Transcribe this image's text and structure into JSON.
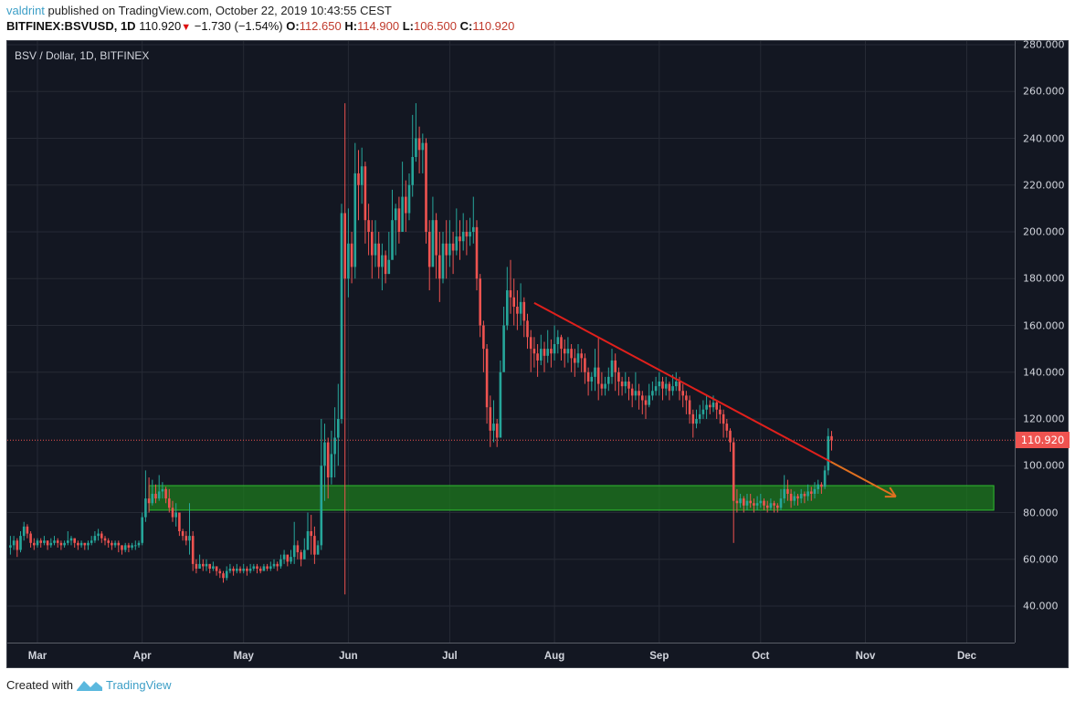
{
  "header": {
    "user": "valdrint",
    "published": "published on TradingView.com, October 22, 2019 10:43:55 CEST",
    "symbol": "BITFINEX:BSVUSD, 1D",
    "last": "110.920",
    "change": "−1.730 (−1.54%)",
    "o_label": "O:",
    "o": "112.650",
    "h_label": "H:",
    "h": "114.900",
    "l_label": "L:",
    "l": "106.500",
    "c_label": "C:",
    "c": "110.920",
    "down_icon": "triangle-down-icon"
  },
  "footer": {
    "created": "Created with",
    "brand": "TradingView",
    "logo_icon": "tradingview-logo-icon"
  },
  "chart_data": {
    "type": "candlestick",
    "title": "BSV / Dollar, 1D, BITFINEX",
    "start_date": "2019-02-21",
    "interval": "1D",
    "candle_format": "[close, high, low]; open = previous close",
    "first_open": 65,
    "colors": {
      "up": "#26a69a",
      "down": "#ef5350",
      "background": "#131722",
      "grid": "#262a35",
      "zone": "#1e7a1e",
      "trend": "#e0201c",
      "arrow": "#e07020"
    },
    "ylim": [
      25,
      285
    ],
    "yticks": [
      40,
      60,
      80,
      100,
      120,
      140,
      160,
      180,
      200,
      220,
      240,
      260,
      280
    ],
    "ytick_labels": [
      "40.000",
      "60.000",
      "80.000",
      "100.000",
      "120.000",
      "140.000",
      "160.000",
      "180.000",
      "200.000",
      "220.000",
      "240.000",
      "260.000",
      "280.000"
    ],
    "xticks": [
      {
        "label": "Mar",
        "day": 8
      },
      {
        "label": "Apr",
        "day": 39
      },
      {
        "label": "May",
        "day": 69
      },
      {
        "label": "Jun",
        "day": 100
      },
      {
        "label": "Jul",
        "day": 130
      },
      {
        "label": "Aug",
        "day": 161
      },
      {
        "label": "Sep",
        "day": 192
      },
      {
        "label": "Oct",
        "day": 222
      },
      {
        "label": "Nov",
        "day": 253
      },
      {
        "label": "Dec",
        "day": 283
      }
    ],
    "last_price": 110.92,
    "last_price_label": "110.920",
    "annotations": {
      "support_zone": {
        "from_day": 41,
        "to_day": 291,
        "low": 81,
        "high": 91.5
      },
      "trendline": {
        "from_day": 155,
        "from_price": 169.6,
        "to_day": 262,
        "to_price": 86.8
      }
    },
    "candles": [
      [
        66,
        70,
        62
      ],
      [
        68,
        70,
        64
      ],
      [
        64,
        69,
        61
      ],
      [
        70,
        72,
        63
      ],
      [
        74,
        76,
        68
      ],
      [
        71,
        75,
        69
      ],
      [
        67,
        72,
        65
      ],
      [
        66,
        69,
        64
      ],
      [
        68,
        69,
        65
      ],
      [
        67,
        69,
        65
      ],
      [
        68,
        70,
        66
      ],
      [
        66,
        68,
        64
      ],
      [
        67,
        69,
        65
      ],
      [
        68,
        70,
        66
      ],
      [
        67,
        69,
        65
      ],
      [
        66,
        68,
        64
      ],
      [
        67,
        68,
        65
      ],
      [
        68,
        72,
        66
      ],
      [
        69,
        70,
        66
      ],
      [
        67,
        69,
        65
      ],
      [
        66,
        68,
        64
      ],
      [
        67,
        68,
        65
      ],
      [
        66,
        67,
        64
      ],
      [
        67,
        68,
        64
      ],
      [
        68,
        70,
        66
      ],
      [
        70,
        72,
        67
      ],
      [
        71,
        73,
        68
      ],
      [
        69,
        72,
        67
      ],
      [
        68,
        70,
        66
      ],
      [
        67,
        69,
        65
      ],
      [
        66,
        68,
        64
      ],
      [
        67,
        68,
        65
      ],
      [
        66,
        68,
        63
      ],
      [
        64,
        66,
        62
      ],
      [
        66,
        67,
        63
      ],
      [
        65,
        67,
        63
      ],
      [
        66,
        67,
        64
      ],
      [
        66,
        68,
        64
      ],
      [
        67,
        68,
        65
      ],
      [
        78,
        80,
        66
      ],
      [
        86,
        98,
        76
      ],
      [
        84,
        95,
        80
      ],
      [
        88,
        94,
        83
      ],
      [
        86,
        92,
        84
      ],
      [
        89,
        96,
        85
      ],
      [
        90,
        93,
        86
      ],
      [
        86,
        91,
        84
      ],
      [
        82,
        90,
        80
      ],
      [
        78,
        85,
        76
      ],
      [
        80,
        84,
        74
      ],
      [
        72,
        80,
        70
      ],
      [
        70,
        73,
        68
      ],
      [
        68,
        72,
        66
      ],
      [
        70,
        84,
        62
      ],
      [
        58,
        72,
        55
      ],
      [
        56,
        60,
        54
      ],
      [
        58,
        62,
        56
      ],
      [
        57,
        60,
        55
      ],
      [
        58,
        60,
        55
      ],
      [
        56,
        58,
        54
      ],
      [
        57,
        59,
        55
      ],
      [
        55,
        57,
        53
      ],
      [
        54,
        56,
        52
      ],
      [
        52,
        55,
        50
      ],
      [
        55,
        57,
        51
      ],
      [
        56,
        58,
        54
      ],
      [
        55,
        57,
        53
      ],
      [
        56,
        58,
        54
      ],
      [
        55,
        57,
        54
      ],
      [
        56,
        58,
        54
      ],
      [
        55,
        57,
        53
      ],
      [
        56,
        58,
        54
      ],
      [
        57,
        58,
        55
      ],
      [
        56,
        58,
        54
      ],
      [
        55,
        57,
        54
      ],
      [
        57,
        58,
        55
      ],
      [
        56,
        58,
        55
      ],
      [
        57,
        59,
        55
      ],
      [
        58,
        60,
        56
      ],
      [
        57,
        59,
        55
      ],
      [
        60,
        62,
        56
      ],
      [
        62,
        64,
        58
      ],
      [
        59,
        62,
        57
      ],
      [
        61,
        64,
        58
      ],
      [
        66,
        76,
        58
      ],
      [
        63,
        68,
        60
      ],
      [
        60,
        64,
        57
      ],
      [
        64,
        69,
        62
      ],
      [
        72,
        80,
        64
      ],
      [
        70,
        79,
        62
      ],
      [
        62,
        74,
        58
      ],
      [
        66,
        68,
        62
      ],
      [
        100,
        120,
        64
      ],
      [
        110,
        118,
        85
      ],
      [
        95,
        112,
        86
      ],
      [
        105,
        115,
        92
      ],
      [
        112,
        125,
        95
      ],
      [
        120,
        135,
        100
      ],
      [
        208,
        212,
        118
      ],
      [
        180,
        255,
        45
      ],
      [
        195,
        210,
        172
      ],
      [
        185,
        200,
        178
      ],
      [
        225,
        238,
        180
      ],
      [
        220,
        235,
        205
      ],
      [
        228,
        236,
        212
      ],
      [
        205,
        230,
        195
      ],
      [
        200,
        212,
        190
      ],
      [
        190,
        205,
        180
      ],
      [
        195,
        205,
        185
      ],
      [
        185,
        200,
        180
      ],
      [
        190,
        195,
        175
      ],
      [
        182,
        192,
        178
      ],
      [
        188,
        200,
        182
      ],
      [
        205,
        218,
        198
      ],
      [
        210,
        212,
        190
      ],
      [
        200,
        215,
        195
      ],
      [
        215,
        230,
        205
      ],
      [
        208,
        222,
        200
      ],
      [
        220,
        225,
        205
      ],
      [
        232,
        250,
        215
      ],
      [
        240,
        255,
        230
      ],
      [
        235,
        245,
        225
      ],
      [
        238,
        242,
        225
      ],
      [
        200,
        240,
        195
      ],
      [
        185,
        205,
        175
      ],
      [
        205,
        215,
        190
      ],
      [
        190,
        208,
        180
      ],
      [
        180,
        200,
        170
      ],
      [
        195,
        200,
        178
      ],
      [
        190,
        205,
        180
      ],
      [
        195,
        205,
        185
      ],
      [
        192,
        200,
        182
      ],
      [
        198,
        210,
        190
      ],
      [
        196,
        205,
        188
      ],
      [
        200,
        208,
        192
      ],
      [
        198,
        205,
        190
      ],
      [
        200,
        206,
        194
      ],
      [
        202,
        215,
        195
      ],
      [
        180,
        205,
        175
      ],
      [
        160,
        182,
        155
      ],
      [
        150,
        162,
        140
      ],
      [
        125,
        152,
        118
      ],
      [
        115,
        130,
        108
      ],
      [
        118,
        128,
        110
      ],
      [
        112,
        120,
        108
      ],
      [
        140,
        145,
        112
      ],
      [
        160,
        168,
        150
      ],
      [
        175,
        185,
        158
      ],
      [
        172,
        188,
        165
      ],
      [
        168,
        180,
        160
      ],
      [
        165,
        175,
        158
      ],
      [
        170,
        178,
        160
      ],
      [
        162,
        172,
        155
      ],
      [
        155,
        165,
        150
      ],
      [
        150,
        158,
        140
      ],
      [
        148,
        155,
        142
      ],
      [
        145,
        152,
        138
      ],
      [
        150,
        156,
        143
      ],
      [
        147,
        153,
        140
      ],
      [
        150,
        158,
        144
      ],
      [
        148,
        154,
        142
      ],
      [
        152,
        160,
        145
      ],
      [
        155,
        158,
        148
      ],
      [
        150,
        156,
        145
      ],
      [
        148,
        154,
        142
      ],
      [
        150,
        155,
        144
      ],
      [
        146,
        152,
        140
      ],
      [
        144,
        150,
        138
      ],
      [
        148,
        152,
        142
      ],
      [
        146,
        150,
        140
      ],
      [
        140,
        148,
        135
      ],
      [
        136,
        142,
        130
      ],
      [
        138,
        140,
        132
      ],
      [
        142,
        150,
        132
      ],
      [
        135,
        155,
        128
      ],
      [
        133,
        140,
        130
      ],
      [
        135,
        138,
        130
      ],
      [
        138,
        142,
        132
      ],
      [
        145,
        150,
        135
      ],
      [
        140,
        148,
        132
      ],
      [
        136,
        142,
        130
      ],
      [
        134,
        138,
        130
      ],
      [
        136,
        140,
        131
      ],
      [
        133,
        138,
        128
      ],
      [
        130,
        135,
        125
      ],
      [
        132,
        140,
        128
      ],
      [
        130,
        135,
        124
      ],
      [
        128,
        132,
        122
      ],
      [
        126,
        130,
        120
      ],
      [
        130,
        135,
        125
      ],
      [
        132,
        136,
        128
      ],
      [
        134,
        138,
        130
      ],
      [
        136,
        140,
        130
      ],
      [
        133,
        138,
        128
      ],
      [
        135,
        138,
        130
      ],
      [
        132,
        136,
        128
      ],
      [
        134,
        139,
        130
      ],
      [
        136,
        140,
        132
      ],
      [
        132,
        138,
        128
      ],
      [
        130,
        135,
        125
      ],
      [
        128,
        132,
        122
      ],
      [
        122,
        130,
        118
      ],
      [
        118,
        124,
        112
      ],
      [
        120,
        124,
        116
      ],
      [
        122,
        126,
        118
      ],
      [
        124,
        128,
        120
      ],
      [
        126,
        130,
        120
      ],
      [
        125,
        128,
        122
      ],
      [
        127,
        130,
        123
      ],
      [
        124,
        128,
        120
      ],
      [
        122,
        126,
        118
      ],
      [
        118,
        124,
        112
      ],
      [
        115,
        120,
        112
      ],
      [
        110,
        116,
        106
      ],
      [
        85,
        112,
        67
      ],
      [
        84,
        90,
        80
      ],
      [
        86,
        88,
        82
      ],
      [
        83,
        87,
        80
      ],
      [
        85,
        88,
        81
      ],
      [
        84,
        88,
        82
      ],
      [
        83,
        86,
        80
      ],
      [
        84,
        87,
        81
      ],
      [
        85,
        88,
        82
      ],
      [
        83,
        86,
        81
      ],
      [
        82,
        85,
        80
      ],
      [
        84,
        86,
        81
      ],
      [
        83,
        85,
        80
      ],
      [
        82,
        84,
        80
      ],
      [
        86,
        90,
        81
      ],
      [
        90,
        96,
        84
      ],
      [
        88,
        94,
        85
      ],
      [
        85,
        90,
        82
      ],
      [
        87,
        89,
        83
      ],
      [
        86,
        88,
        83
      ],
      [
        88,
        90,
        84
      ],
      [
        87,
        89,
        84
      ],
      [
        89,
        92,
        85
      ],
      [
        88,
        91,
        85
      ],
      [
        90,
        93,
        86
      ],
      [
        92,
        94,
        88
      ],
      [
        91,
        93,
        88
      ],
      [
        98,
        100,
        90
      ],
      [
        112.65,
        116,
        96
      ],
      [
        110.92,
        114.9,
        106.5
      ]
    ]
  }
}
